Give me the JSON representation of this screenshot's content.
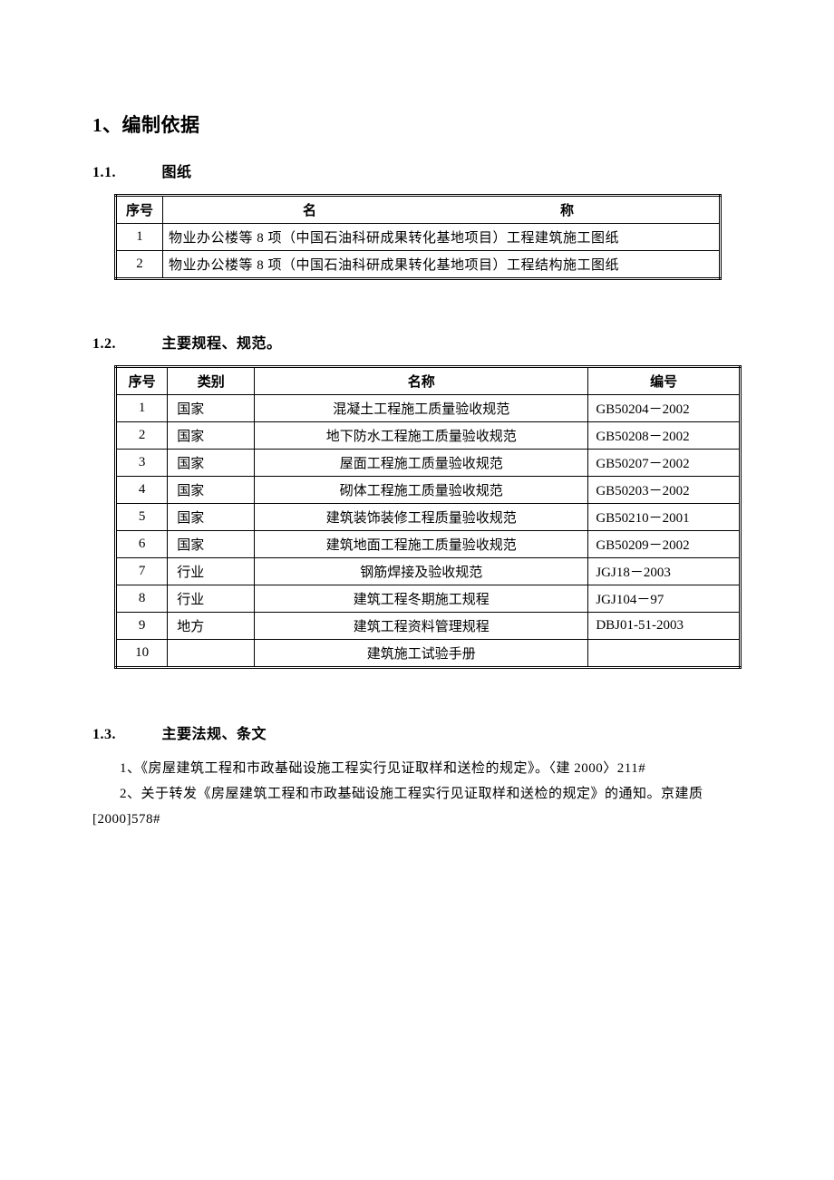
{
  "section1": {
    "title": "1、编制依据",
    "sub1": {
      "num": "1.1.",
      "title": "图纸",
      "table": {
        "columns": [
          "序号",
          "名称"
        ],
        "header_name_display": "名　　　称",
        "rows": [
          [
            "1",
            "物业办公楼等 8 项（中国石油科研成果转化基地项目）工程建筑施工图纸"
          ],
          [
            "2",
            "物业办公楼等 8 项（中国石油科研成果转化基地项目）工程结构施工图纸"
          ]
        ]
      }
    },
    "sub2": {
      "num": "1.2.",
      "title": "主要规程、规范。",
      "table": {
        "columns": [
          "序号",
          "类别",
          "名称",
          "编号"
        ],
        "rows": [
          [
            "1",
            "国家",
            "混凝土工程施工质量验收规范",
            "GB50204－2002"
          ],
          [
            "2",
            "国家",
            "地下防水工程施工质量验收规范",
            "GB50208－2002"
          ],
          [
            "3",
            "国家",
            "屋面工程施工质量验收规范",
            "GB50207－2002"
          ],
          [
            "4",
            "国家",
            "砌体工程施工质量验收规范",
            "GB50203－2002"
          ],
          [
            "5",
            "国家",
            "建筑装饰装修工程质量验收规范",
            "GB50210－2001"
          ],
          [
            "6",
            "国家",
            "建筑地面工程施工质量验收规范",
            "GB50209－2002"
          ],
          [
            "7",
            "行业",
            "钢筋焊接及验收规范",
            "JGJ18－2003"
          ],
          [
            "8",
            "行业",
            "建筑工程冬期施工规程",
            "JGJ104－97"
          ],
          [
            "9",
            "地方",
            "建筑工程资料管理规程",
            "DBJ01-51-2003"
          ],
          [
            "10",
            "",
            "建筑施工试验手册",
            ""
          ]
        ]
      }
    },
    "sub3": {
      "num": "1.3.",
      "title": "主要法规、条文",
      "paragraphs": [
        "1、《房屋建筑工程和市政基础设施工程实行见证取样和送检的规定》。〈建 2000〉211#",
        "2、关于转发《房屋建筑工程和市政基础设施工程实行见证取样和送检的规定》的通知。京建质[2000]578#"
      ]
    }
  }
}
